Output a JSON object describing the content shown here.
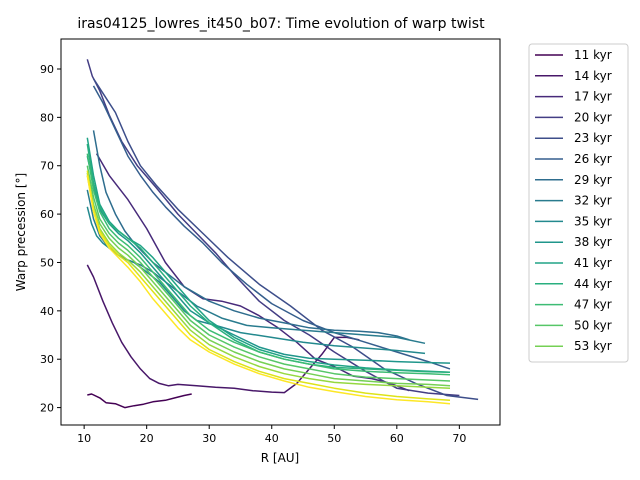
{
  "chart_data": {
    "type": "line",
    "title": "iras04125_lowres_it450_b07: Time evolution of warp twist",
    "xlabel": "R [AU]",
    "ylabel": "Warp precession [°]",
    "xlim": [
      6.3,
      76.5
    ],
    "ylim": [
      16.4,
      96.2
    ],
    "xticks": [
      10,
      20,
      30,
      40,
      50,
      60,
      70
    ],
    "yticks": [
      20,
      30,
      40,
      50,
      60,
      70,
      80,
      90
    ],
    "grid": false,
    "legend_position": "outside-right",
    "series": [
      {
        "name": "11 kyr",
        "color": "#440154",
        "x": [
          10.5,
          11.2,
          12.5,
          13.5,
          15,
          16.5,
          18,
          19.5,
          21,
          23,
          24.5,
          26,
          27.2
        ],
        "y": [
          22.6,
          22.8,
          22.0,
          21.0,
          20.8,
          20.0,
          20.4,
          20.7,
          21.2,
          21.5,
          22.0,
          22.5,
          22.8
        ]
      },
      {
        "name": "14 kyr",
        "color": "#481769",
        "x": [
          10.5,
          11.5,
          13,
          14.5,
          16,
          17.5,
          19,
          20.5,
          22,
          23.5,
          25,
          28,
          31,
          34,
          37,
          40,
          42,
          44,
          46,
          48,
          50,
          52,
          54
        ],
        "y": [
          49.5,
          47.0,
          42.0,
          37.5,
          33.5,
          30.5,
          28.0,
          26.0,
          25.0,
          24.5,
          24.8,
          24.5,
          24.2,
          24.0,
          23.5,
          23.2,
          23.1,
          25.0,
          28.0,
          31.0,
          34.5,
          34.5,
          34.0
        ]
      },
      {
        "name": "17 kyr",
        "color": "#472a7a",
        "x": [
          12,
          14,
          17,
          20,
          23,
          26,
          29,
          32,
          35,
          38,
          41,
          44,
          47,
          50,
          53,
          56,
          59,
          62
        ],
        "y": [
          72.5,
          68.0,
          63.0,
          57.0,
          50.0,
          45.0,
          42.5,
          42.0,
          41.0,
          39.0,
          36.5,
          33.5,
          30.0,
          28.5,
          26.5,
          26.0,
          25.0,
          23.5
        ]
      },
      {
        "name": "20 kyr",
        "color": "#433d84",
        "x": [
          10.5,
          11.3,
          12.5,
          14,
          16,
          18.5,
          21.5,
          25,
          28,
          31,
          34,
          38,
          42,
          46,
          50,
          55,
          60,
          65,
          70
        ],
        "y": [
          92.0,
          88.5,
          85.5,
          80.5,
          75.0,
          70.0,
          65.5,
          60.0,
          56.0,
          52.0,
          47.5,
          42.0,
          38.0,
          35.0,
          31.5,
          27.5,
          24.0,
          23.0,
          22.5
        ]
      },
      {
        "name": "23 kyr",
        "color": "#3d4e8a",
        "x": [
          11.5,
          13,
          15,
          17,
          19,
          21.5,
          25,
          29,
          33,
          38,
          43,
          48,
          53,
          58,
          63,
          68,
          73
        ],
        "y": [
          88.0,
          85.0,
          81.0,
          75.0,
          70.0,
          66.0,
          61.0,
          56.0,
          51.0,
          45.5,
          41.0,
          36.0,
          32.5,
          28.0,
          25.0,
          22.5,
          21.7
        ]
      },
      {
        "name": "26 kyr",
        "color": "#355e8d",
        "x": [
          11.5,
          13,
          15,
          17,
          19,
          21,
          23,
          26,
          29,
          32,
          36,
          40,
          45,
          50,
          55,
          60,
          65,
          68.5
        ],
        "y": [
          86.5,
          83.0,
          77.5,
          72.0,
          68.0,
          64.5,
          61.5,
          57.5,
          54.0,
          50.0,
          45.5,
          41.5,
          38.0,
          35.5,
          33.5,
          31.5,
          29.5,
          28.0
        ]
      },
      {
        "name": "29 kyr",
        "color": "#2e6d8e",
        "x": [
          11.5,
          12.5,
          13.5,
          15,
          16.5,
          18,
          19.5,
          21,
          23,
          26,
          30,
          34,
          38,
          42,
          46,
          50,
          54,
          57,
          60,
          62
        ],
        "y": [
          77.3,
          70.0,
          64.5,
          60.0,
          56.5,
          54.0,
          52.0,
          50.0,
          48.0,
          45.0,
          42.0,
          40.0,
          38.5,
          37.5,
          36.5,
          36.0,
          35.8,
          35.5,
          34.8,
          34.0
        ]
      },
      {
        "name": "32 kyr",
        "color": "#297b8e",
        "x": [
          10.5,
          11.5,
          12.5,
          14,
          15.5,
          17,
          19,
          21,
          23,
          25,
          28,
          32,
          36,
          40,
          45,
          50,
          55,
          60,
          64.5
        ],
        "y": [
          65.0,
          59.0,
          55.5,
          53.0,
          51.5,
          50.5,
          49.5,
          48.0,
          46.0,
          44.0,
          41.0,
          38.5,
          37.0,
          36.5,
          36.0,
          35.5,
          35.0,
          34.5,
          33.3
        ]
      },
      {
        "name": "35 kyr",
        "color": "#23898e",
        "x": [
          10.5,
          11.2,
          12,
          13,
          14.5,
          16,
          18,
          20,
          22,
          24,
          26,
          28,
          31,
          35,
          40,
          45,
          50,
          55,
          60,
          64.5
        ],
        "y": [
          61.5,
          58.0,
          55.5,
          54.0,
          52.5,
          51.0,
          50.0,
          48.0,
          46.0,
          43.0,
          40.0,
          38.0,
          37.0,
          35.5,
          34.5,
          33.5,
          32.8,
          32.3,
          31.8,
          31.2
        ]
      },
      {
        "name": "38 kyr",
        "color": "#1f968b",
        "x": [
          10.5,
          11.5,
          12.5,
          14,
          15.5,
          17,
          19,
          21,
          23,
          25,
          27,
          30,
          34,
          38,
          42,
          46,
          50,
          55,
          60,
          65,
          68.5
        ],
        "y": [
          72.0,
          66.0,
          61.0,
          58.0,
          56.0,
          54.5,
          52.0,
          49.0,
          46.0,
          43.0,
          40.0,
          37.5,
          35.0,
          32.5,
          31.0,
          30.2,
          30.0,
          29.8,
          29.5,
          29.3,
          29.2
        ]
      },
      {
        "name": "41 kyr",
        "color": "#20a386",
        "x": [
          10.5,
          11.5,
          12.5,
          14,
          15.5,
          17,
          19,
          21,
          23,
          25,
          27,
          30,
          34,
          38,
          42,
          46,
          50,
          55,
          60,
          65,
          68.5
        ],
        "y": [
          75.8,
          68.0,
          62.0,
          58.5,
          56.5,
          55.0,
          53.5,
          51.0,
          48.0,
          45.0,
          42.0,
          38.0,
          34.5,
          32.0,
          30.5,
          29.5,
          28.8,
          28.2,
          27.8,
          27.5,
          27.3
        ]
      },
      {
        "name": "44 kyr",
        "color": "#29af7f",
        "x": [
          10.5,
          11.5,
          12.5,
          14,
          15.5,
          17,
          19,
          21,
          23,
          25,
          27,
          30,
          34,
          38,
          42,
          46,
          50,
          55,
          60,
          65,
          68.5
        ],
        "y": [
          74.5,
          66.5,
          61.5,
          58.0,
          56.5,
          55.0,
          53.0,
          50.0,
          47.0,
          44.0,
          41.0,
          37.5,
          34.0,
          31.5,
          30.0,
          29.0,
          28.3,
          28.0,
          27.7,
          27.4,
          27.3
        ]
      },
      {
        "name": "47 kyr",
        "color": "#3dbc74",
        "x": [
          10.5,
          11.5,
          12.5,
          14,
          15.5,
          17,
          19,
          21,
          23,
          25,
          27,
          30,
          34,
          38,
          42,
          46,
          50,
          55,
          60,
          65,
          68.5
        ],
        "y": [
          72.5,
          65.0,
          60.5,
          57.0,
          55.0,
          53.5,
          51.0,
          48.0,
          45.0,
          42.0,
          39.0,
          36.0,
          33.5,
          31.5,
          30.0,
          29.0,
          28.0,
          27.5,
          27.2,
          27.0,
          26.8
        ]
      },
      {
        "name": "50 kyr",
        "color": "#56c667",
        "x": [
          10.5,
          11.5,
          12.5,
          14,
          15.5,
          17,
          19,
          21,
          23,
          25,
          27,
          30,
          34,
          38,
          42,
          46,
          50,
          55,
          60,
          65,
          68.5
        ],
        "y": [
          70.0,
          63.5,
          59.0,
          56.0,
          54.0,
          52.5,
          50.0,
          47.0,
          44.0,
          41.0,
          38.0,
          35.0,
          32.5,
          30.5,
          29.0,
          28.0,
          27.0,
          26.3,
          26.0,
          25.7,
          25.5
        ]
      },
      {
        "name": "53 kyr",
        "color": "#75d054",
        "x": [
          10.5,
          11.5,
          12.5,
          14,
          15.5,
          17,
          19,
          21,
          23,
          25,
          27,
          30,
          34,
          38,
          42,
          46,
          50,
          55,
          60,
          65,
          68.5
        ],
        "y": [
          68.5,
          62.0,
          58.0,
          55.0,
          53.0,
          51.5,
          49.0,
          46.0,
          43.0,
          40.0,
          37.0,
          34.0,
          31.5,
          29.5,
          28.0,
          27.0,
          26.0,
          25.5,
          25.0,
          24.8,
          24.5
        ]
      },
      {
        "name": "",
        "color": "#95d840",
        "x": [
          10.5,
          11.5,
          12.5,
          14,
          15.5,
          17,
          19,
          21,
          23,
          25,
          27,
          30,
          34,
          38,
          42,
          46,
          50,
          55,
          60,
          65,
          68.5
        ],
        "y": [
          68.0,
          61.0,
          57.0,
          54.0,
          52.0,
          50.5,
          48.0,
          45.0,
          42.0,
          39.0,
          36.0,
          33.0,
          30.5,
          28.5,
          27.0,
          26.0,
          25.2,
          24.8,
          24.5,
          24.2,
          24.0
        ]
      },
      {
        "name": "",
        "color": "#dde318",
        "x": [
          10.5,
          11.5,
          12.5,
          14,
          15.5,
          17,
          19,
          21,
          23,
          25,
          27,
          30,
          34,
          38,
          42,
          46,
          50,
          55,
          60,
          65,
          68.5
        ],
        "y": [
          69.0,
          61.0,
          56.5,
          53.5,
          51.5,
          50.0,
          47.0,
          44.0,
          41.0,
          38.0,
          35.0,
          32.0,
          29.5,
          27.5,
          26.0,
          25.0,
          24.0,
          23.0,
          22.3,
          21.8,
          21.5
        ]
      },
      {
        "name": "",
        "color": "#fde725",
        "x": [
          10.5,
          11.5,
          12.5,
          14,
          15.5,
          17,
          19,
          21,
          23,
          25,
          27,
          30,
          34,
          38,
          42,
          46,
          50,
          55,
          60,
          65,
          68.5
        ],
        "y": [
          68.0,
          60.5,
          56.0,
          53.0,
          51.0,
          49.0,
          46.0,
          42.5,
          39.5,
          36.5,
          34.0,
          31.5,
          29.0,
          27.0,
          25.5,
          24.2,
          23.3,
          22.3,
          21.6,
          21.2,
          20.8
        ]
      }
    ]
  }
}
